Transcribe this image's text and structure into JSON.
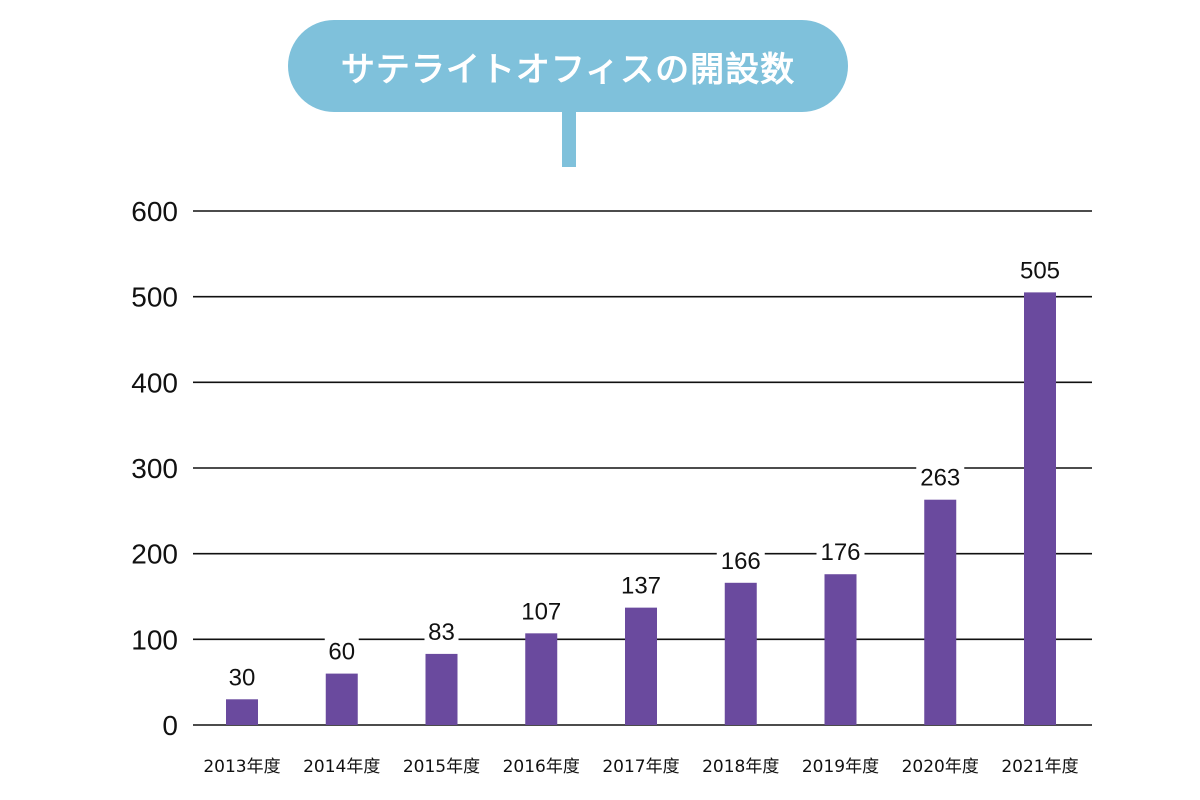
{
  "chart_data": {
    "type": "bar",
    "title": "サテライトオフィスの開設数",
    "categories": [
      "2013年度",
      "2014年度",
      "2015年度",
      "2016年度",
      "2017年度",
      "2018年度",
      "2019年度",
      "2020年度",
      "2021年度"
    ],
    "values": [
      30,
      60,
      83,
      107,
      137,
      166,
      176,
      263,
      505
    ],
    "value_labels": [
      "30",
      "60",
      "83",
      "107",
      "137",
      "166",
      "176",
      "263",
      "505"
    ],
    "yticks": [
      "0",
      "100",
      "200",
      "300",
      "400",
      "500",
      "600"
    ],
    "ylim": [
      0,
      600
    ],
    "grid": true,
    "bar_color": "#6a4a9e",
    "title_color": "#7fc1db"
  }
}
